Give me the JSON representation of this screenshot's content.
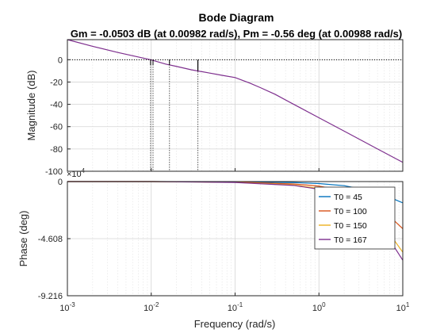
{
  "chart_data": {
    "type": "line",
    "title": "Bode Diagram",
    "subtitle": "Gm = -0.0503 dB (at 0.00982 rad/s),  Pm = -0.56 deg (at 0.00988 rad/s)",
    "xlabel": "Frequency  (rad/s)",
    "x_scale": "log",
    "xlim": [
      0.001,
      10
    ],
    "x_ticks": [
      {
        "value": 0.001,
        "base": "10",
        "exp": "-3"
      },
      {
        "value": 0.01,
        "base": "10",
        "exp": "-2"
      },
      {
        "value": 0.1,
        "base": "10",
        "exp": "-1"
      },
      {
        "value": 1,
        "base": "10",
        "exp": "0"
      },
      {
        "value": 10,
        "base": "10",
        "exp": "1"
      }
    ],
    "grid": true,
    "magnitude": {
      "ylabel": "Magnitude (dB)",
      "ylim": [
        -100,
        18
      ],
      "y_ticks": [
        "0",
        "-20",
        "-40",
        "-60",
        "-80",
        "-100"
      ],
      "y_tick_values": [
        0,
        -20,
        -40,
        -60,
        -80,
        -100
      ],
      "reference_line_db": 0,
      "series": [
        {
          "color": "#7E2F8E",
          "x": [
            0.001,
            0.002,
            0.004,
            0.00982,
            0.015,
            0.02,
            0.03,
            0.05,
            0.07,
            0.1,
            0.15,
            0.2,
            0.3,
            0.5,
            1,
            2,
            5,
            10
          ],
          "y": [
            18,
            12,
            6.5,
            0,
            -4,
            -6,
            -9,
            -12,
            -14,
            -16,
            -21,
            -25,
            -31,
            -40,
            -52,
            -64,
            -80,
            -92
          ]
        }
      ],
      "margin_markers": [
        {
          "x": 0.00982,
          "y": 0,
          "style": "dotted"
        },
        {
          "x": 0.0105,
          "y": 0,
          "style": "dotted"
        },
        {
          "x": 0.0165,
          "y": 0,
          "style": "dotted"
        },
        {
          "x": 0.036,
          "y": 0,
          "style": "solid"
        }
      ]
    },
    "phase": {
      "ylabel": "Phase (deg)",
      "ylim": [
        -9.216,
        0
      ],
      "y_multiplier": "× 10^4",
      "y_multiplier_base": "×10",
      "y_multiplier_exp": "4",
      "y_ticks": [
        "0",
        "-4.608",
        "-9.216"
      ],
      "y_tick_values": [
        0,
        -4.608,
        -9.216
      ],
      "series": [
        {
          "name": "T0 = 45",
          "color": "#0072BD",
          "x": [
            0.001,
            0.01,
            0.1,
            0.5,
            1,
            2,
            5,
            10
          ],
          "y": [
            0,
            0,
            -0.02,
            -0.08,
            -0.16,
            -0.33,
            -0.85,
            -1.72
          ]
        },
        {
          "name": "T0 = 100",
          "color": "#D95319",
          "x": [
            0.001,
            0.01,
            0.1,
            0.5,
            1,
            2,
            5,
            10
          ],
          "y": [
            0,
            0,
            -0.04,
            -0.19,
            -0.37,
            -0.75,
            -1.9,
            -3.8
          ]
        },
        {
          "name": "T0 = 150",
          "color": "#EDB120",
          "x": [
            0.001,
            0.01,
            0.1,
            0.5,
            1,
            2,
            5,
            10
          ],
          "y": [
            0,
            0,
            -0.06,
            -0.28,
            -0.56,
            -1.12,
            -2.86,
            -5.7
          ]
        },
        {
          "name": "T0 = 167",
          "color": "#7E2F8E",
          "x": [
            0.001,
            0.01,
            0.1,
            0.5,
            1,
            2,
            5,
            10
          ],
          "y": [
            0,
            0,
            -0.07,
            -0.31,
            -0.62,
            -1.25,
            -3.18,
            -6.35
          ]
        }
      ],
      "legend_position": "top-right"
    }
  }
}
